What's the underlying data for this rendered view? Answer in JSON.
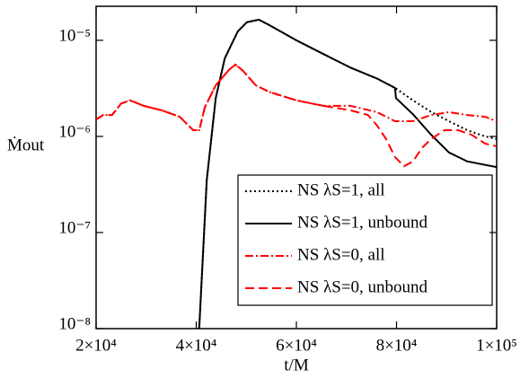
{
  "chart_data": {
    "type": "line",
    "xlabel": "t/M",
    "ylabel": "Ṁout",
    "log_y": true,
    "xlim": [
      20000,
      100000
    ],
    "ylim": [
      1e-08,
      2.26e-05
    ],
    "xticks": [
      {
        "value": 20000,
        "label": "2×10⁴"
      },
      {
        "value": 40000,
        "label": "4×10⁴"
      },
      {
        "value": 60000,
        "label": "6×10⁴"
      },
      {
        "value": 80000,
        "label": "8×10⁴"
      },
      {
        "value": 100000,
        "label": "1×10⁵"
      }
    ],
    "yticks": [
      {
        "value": 1e-08,
        "label": "10⁻⁸"
      },
      {
        "value": 1e-07,
        "label": "10⁻⁷"
      },
      {
        "value": 1e-06,
        "label": "10⁻⁶"
      },
      {
        "value": 1e-05,
        "label": "10⁻⁵"
      }
    ],
    "legend": "lower right",
    "series": [
      {
        "name": "NS λS=1, all",
        "color": "#000000",
        "dash": "2,3",
        "x": [
          40600,
          42100,
          43900,
          45700,
          48300,
          50100,
          52500,
          54600,
          60000,
          65400,
          70800,
          76100,
          79700,
          83300,
          86900,
          90500,
          94100,
          97700,
          100000
        ],
        "values": [
          1e-08,
          3.5e-07,
          2.5e-06,
          6.5e-06,
          1.24e-05,
          1.54e-05,
          1.64e-05,
          1.44e-05,
          1e-05,
          7.2e-06,
          5.2e-06,
          4e-06,
          3.2e-06,
          2.37e-06,
          1.8e-06,
          1.44e-06,
          1.16e-06,
          1e-06,
          9.4e-07
        ]
      },
      {
        "name": "NS λS=1, unbound",
        "color": "#000000",
        "dash": "none",
        "x": [
          40600,
          42100,
          43900,
          45700,
          48300,
          50100,
          52500,
          54600,
          60000,
          65400,
          70800,
          76100,
          79700,
          79900,
          83300,
          86900,
          90500,
          94100,
          100000
        ],
        "values": [
          1e-08,
          3.5e-07,
          2.5e-06,
          6.5e-06,
          1.24e-05,
          1.54e-05,
          1.64e-05,
          1.44e-05,
          1e-05,
          7.2e-06,
          5.2e-06,
          4e-06,
          3.2e-06,
          2.5e-06,
          1.7e-06,
          1.04e-06,
          6.8e-07,
          5.5e-07,
          4.8e-07
        ]
      },
      {
        "name": "NS λS=0, all",
        "color": "#ff0000",
        "dash": "9,3,2,3",
        "x": [
          20000,
          21400,
          23200,
          25000,
          26800,
          29500,
          33100,
          36700,
          39400,
          40600,
          41700,
          43900,
          46500,
          47800,
          49200,
          51900,
          54600,
          60000,
          65400,
          70800,
          76100,
          79700,
          83300,
          86900,
          90500,
          94100,
          97700,
          100000
        ],
        "values": [
          1.5e-06,
          1.67e-06,
          1.67e-06,
          2.2e-06,
          2.37e-06,
          2.08e-06,
          1.87e-06,
          1.6e-06,
          1.16e-06,
          1.16e-06,
          2e-06,
          3.4e-06,
          4.9e-06,
          5.6e-06,
          4.9e-06,
          3.4e-06,
          2.9e-06,
          2.37e-06,
          2.08e-06,
          2.08e-06,
          1.79e-06,
          1.44e-06,
          1.44e-06,
          1.67e-06,
          1.79e-06,
          1.67e-06,
          1.6e-06,
          1.44e-06
        ]
      },
      {
        "name": "NS λS=0, unbound",
        "color": "#ff0000",
        "dash": "10,5",
        "x": [
          20000,
          21400,
          23200,
          25000,
          26800,
          29500,
          33100,
          36700,
          39400,
          40600,
          41700,
          43900,
          46500,
          47800,
          49200,
          51900,
          54600,
          60000,
          65400,
          70800,
          74300,
          76100,
          77900,
          79700,
          81500,
          83300,
          85100,
          86900,
          89600,
          92300,
          95000,
          97700,
          100000
        ],
        "values": [
          1.5e-06,
          1.67e-06,
          1.67e-06,
          2.2e-06,
          2.37e-06,
          2.08e-06,
          1.87e-06,
          1.6e-06,
          1.16e-06,
          1.16e-06,
          2e-06,
          3.4e-06,
          4.9e-06,
          5.6e-06,
          4.9e-06,
          3.4e-06,
          2.9e-06,
          2.37e-06,
          2.08e-06,
          1.87e-06,
          1.67e-06,
          1.3e-06,
          9.4e-07,
          6.1e-07,
          4.9e-07,
          5.5e-07,
          7.6e-07,
          9.4e-07,
          1.16e-06,
          1.16e-06,
          1.04e-06,
          8.4e-07,
          7.9e-07
        ]
      }
    ]
  }
}
